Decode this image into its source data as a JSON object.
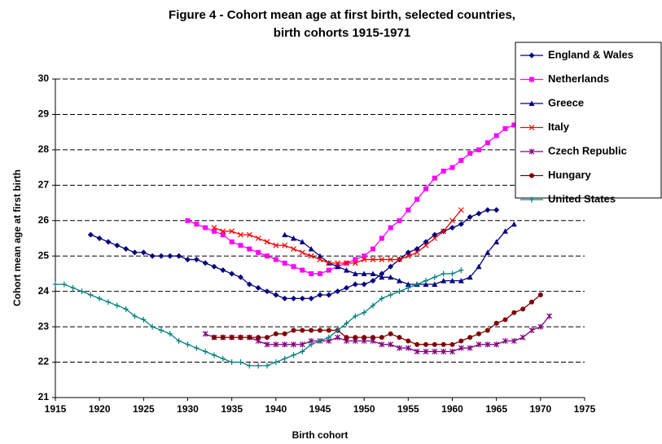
{
  "chart_data": {
    "type": "line",
    "title": "Figure 4 - Cohort mean age at first birth, selected countries, birth cohorts 1915-1971",
    "x_label": "Birth cohort",
    "y_label": "Cohort mean age at first birth",
    "xlim": [
      1915,
      1975
    ],
    "xticks": [
      1915,
      1920,
      1925,
      1930,
      1935,
      1940,
      1945,
      1950,
      1955,
      1960,
      1965,
      1970,
      1975
    ],
    "ylim": [
      21,
      30
    ],
    "yticks": [
      21,
      22,
      23,
      24,
      25,
      26,
      27,
      28,
      29,
      30
    ],
    "grid": true,
    "legend": "upper right",
    "series": [
      {
        "name": "England & Wales",
        "color": "#000080",
        "marker": "diamond",
        "x": [
          1919,
          1920,
          1921,
          1922,
          1923,
          1924,
          1925,
          1926,
          1927,
          1928,
          1929,
          1930,
          1931,
          1932,
          1933,
          1934,
          1935,
          1936,
          1937,
          1938,
          1939,
          1940,
          1941,
          1942,
          1943,
          1944,
          1945,
          1946,
          1947,
          1948,
          1949,
          1950,
          1951,
          1952,
          1953,
          1954,
          1955,
          1956,
          1957,
          1958,
          1959,
          1960,
          1961,
          1962,
          1963,
          1964,
          1965
        ],
        "values": [
          25.6,
          25.5,
          25.4,
          25.3,
          25.2,
          25.1,
          25.1,
          25.0,
          25.0,
          25.0,
          25.0,
          24.9,
          24.9,
          24.8,
          24.7,
          24.6,
          24.5,
          24.4,
          24.2,
          24.1,
          24.0,
          23.9,
          23.8,
          23.8,
          23.8,
          23.8,
          23.9,
          23.9,
          24.0,
          24.1,
          24.2,
          24.2,
          24.3,
          24.5,
          24.7,
          24.9,
          25.1,
          25.2,
          25.4,
          25.6,
          25.7,
          25.8,
          25.9,
          26.1,
          26.2,
          26.3,
          26.3
        ]
      },
      {
        "name": "Netherlands",
        "color": "#ff00ff",
        "marker": "square",
        "x": [
          1930,
          1931,
          1932,
          1933,
          1934,
          1935,
          1936,
          1937,
          1938,
          1939,
          1940,
          1941,
          1942,
          1943,
          1944,
          1945,
          1946,
          1947,
          1948,
          1949,
          1950,
          1951,
          1952,
          1953,
          1954,
          1955,
          1956,
          1957,
          1958,
          1959,
          1960,
          1961,
          1962,
          1963,
          1964,
          1965,
          1966,
          1967
        ],
        "values": [
          26.0,
          25.9,
          25.8,
          25.7,
          25.6,
          25.4,
          25.3,
          25.2,
          25.1,
          25.0,
          24.9,
          24.8,
          24.7,
          24.6,
          24.5,
          24.5,
          24.6,
          24.7,
          24.8,
          24.9,
          25.0,
          25.2,
          25.5,
          25.8,
          26.0,
          26.3,
          26.6,
          26.9,
          27.2,
          27.4,
          27.5,
          27.7,
          27.9,
          28.0,
          28.2,
          28.4,
          28.6,
          28.7
        ]
      },
      {
        "name": "Greece",
        "color": "#000080",
        "marker": "triangle",
        "x": [
          1941,
          1942,
          1943,
          1944,
          1945,
          1946,
          1947,
          1948,
          1949,
          1950,
          1951,
          1952,
          1953,
          1954,
          1955,
          1956,
          1957,
          1958,
          1959,
          1960,
          1961,
          1962,
          1963,
          1964,
          1965,
          1966,
          1967
        ],
        "values": [
          25.6,
          25.5,
          25.4,
          25.2,
          25.0,
          24.8,
          24.7,
          24.6,
          24.5,
          24.5,
          24.5,
          24.4,
          24.4,
          24.3,
          24.2,
          24.2,
          24.2,
          24.2,
          24.3,
          24.3,
          24.3,
          24.4,
          24.7,
          25.1,
          25.4,
          25.7,
          25.9
        ]
      },
      {
        "name": "Italy",
        "color": "#ff0000",
        "marker": "x",
        "x": [
          1933,
          1934,
          1935,
          1936,
          1937,
          1938,
          1939,
          1940,
          1941,
          1942,
          1943,
          1944,
          1945,
          1946,
          1947,
          1948,
          1949,
          1950,
          1951,
          1952,
          1953,
          1954,
          1955,
          1956,
          1957,
          1958,
          1959,
          1960,
          1961
        ],
        "values": [
          25.8,
          25.7,
          25.7,
          25.6,
          25.6,
          25.5,
          25.4,
          25.3,
          25.3,
          25.2,
          25.1,
          25.0,
          24.9,
          24.8,
          24.8,
          24.8,
          24.8,
          24.9,
          24.9,
          24.9,
          24.9,
          24.9,
          25.0,
          25.1,
          25.3,
          25.5,
          25.7,
          26.0,
          26.3
        ]
      },
      {
        "name": "Czech Republic",
        "color": "#800080",
        "marker": "asterisk",
        "x": [
          1932,
          1933,
          1934,
          1935,
          1936,
          1937,
          1938,
          1939,
          1940,
          1941,
          1942,
          1943,
          1944,
          1945,
          1946,
          1947,
          1948,
          1949,
          1950,
          1951,
          1952,
          1953,
          1954,
          1955,
          1956,
          1957,
          1958,
          1959,
          1960,
          1961,
          1962,
          1963,
          1964,
          1965,
          1966,
          1967,
          1968,
          1969,
          1970,
          1971
        ],
        "values": [
          22.8,
          22.7,
          22.7,
          22.7,
          22.7,
          22.7,
          22.6,
          22.5,
          22.5,
          22.5,
          22.5,
          22.5,
          22.6,
          22.6,
          22.6,
          22.7,
          22.6,
          22.6,
          22.6,
          22.6,
          22.5,
          22.5,
          22.4,
          22.4,
          22.3,
          22.3,
          22.3,
          22.3,
          22.3,
          22.4,
          22.4,
          22.5,
          22.5,
          22.5,
          22.6,
          22.6,
          22.7,
          22.9,
          23.0,
          23.3
        ]
      },
      {
        "name": "Hungary",
        "color": "#800000",
        "marker": "circle",
        "x": [
          1933,
          1934,
          1935,
          1936,
          1937,
          1938,
          1939,
          1940,
          1941,
          1942,
          1943,
          1944,
          1945,
          1946,
          1947,
          1948,
          1949,
          1950,
          1951,
          1952,
          1953,
          1954,
          1955,
          1956,
          1957,
          1958,
          1959,
          1960,
          1961,
          1962,
          1963,
          1964,
          1965,
          1966,
          1967,
          1968,
          1969,
          1970
        ],
        "values": [
          22.7,
          22.7,
          22.7,
          22.7,
          22.7,
          22.7,
          22.7,
          22.8,
          22.8,
          22.9,
          22.9,
          22.9,
          22.9,
          22.9,
          22.9,
          22.7,
          22.7,
          22.7,
          22.7,
          22.7,
          22.8,
          22.7,
          22.6,
          22.5,
          22.5,
          22.5,
          22.5,
          22.5,
          22.6,
          22.7,
          22.8,
          22.9,
          23.1,
          23.2,
          23.4,
          23.5,
          23.7,
          23.9
        ]
      },
      {
        "name": "United States",
        "color": "#008080",
        "marker": "plus",
        "x": [
          1915,
          1916,
          1917,
          1918,
          1919,
          1920,
          1921,
          1922,
          1923,
          1924,
          1925,
          1926,
          1927,
          1928,
          1929,
          1930,
          1931,
          1932,
          1933,
          1934,
          1935,
          1936,
          1937,
          1938,
          1939,
          1940,
          1941,
          1942,
          1943,
          1944,
          1945,
          1946,
          1947,
          1948,
          1949,
          1950,
          1951,
          1952,
          1953,
          1954,
          1955,
          1956,
          1957,
          1958,
          1959,
          1960,
          1961
        ],
        "values": [
          24.2,
          24.2,
          24.1,
          24.0,
          23.9,
          23.8,
          23.7,
          23.6,
          23.5,
          23.3,
          23.2,
          23.0,
          22.9,
          22.8,
          22.6,
          22.5,
          22.4,
          22.3,
          22.2,
          22.1,
          22.0,
          22.0,
          21.9,
          21.9,
          21.9,
          22.0,
          22.1,
          22.2,
          22.3,
          22.5,
          22.6,
          22.7,
          22.9,
          23.1,
          23.3,
          23.4,
          23.6,
          23.8,
          23.9,
          24.0,
          24.1,
          24.2,
          24.3,
          24.4,
          24.5,
          24.5,
          24.6
        ]
      }
    ]
  }
}
